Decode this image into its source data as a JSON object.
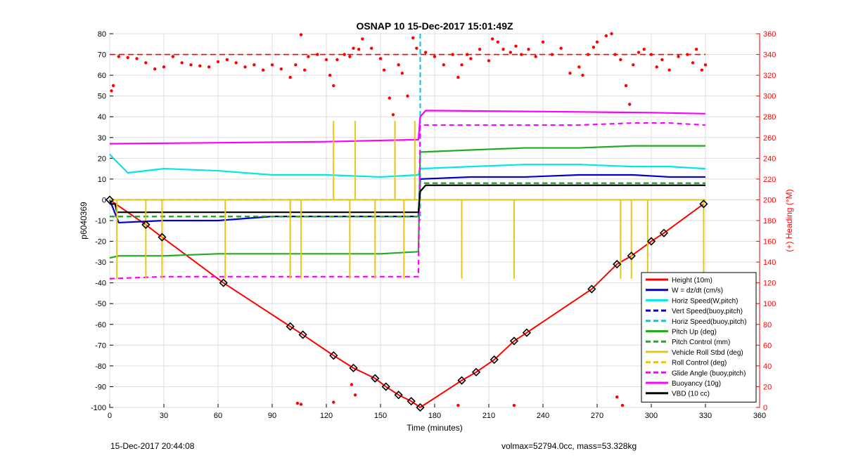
{
  "chart_data": {
    "type": "line",
    "title": "OSNAP 10 15-Dec-2017 15:01:49Z",
    "xlabel": "Time (minutes)",
    "ylabel": "p6040369",
    "y2label": "(+) Heading (°M)",
    "xlim": [
      0,
      360
    ],
    "ylim": [
      -100,
      80
    ],
    "y2lim": [
      0,
      360
    ],
    "xticks": [
      "0",
      "30",
      "60",
      "90",
      "120",
      "150",
      "180",
      "210",
      "240",
      "270",
      "300",
      "330",
      "360"
    ],
    "yticks": [
      "80",
      "70",
      "60",
      "50",
      "40",
      "30",
      "20",
      "10",
      "0",
      "-10",
      "-20",
      "-30",
      "-40",
      "-50",
      "-60",
      "-70",
      "-80",
      "-90",
      "-100"
    ],
    "y2ticks": [
      "360",
      "340",
      "320",
      "300",
      "280",
      "260",
      "240",
      "220",
      "200",
      "180",
      "160",
      "140",
      "120",
      "100",
      "80",
      "60",
      "40",
      "20",
      "0"
    ],
    "grid": true,
    "legend_position": "bottom-right",
    "series": [
      {
        "name": "Height (10m)",
        "color": "#ff0000",
        "style": "solid",
        "x": [
          0,
          20,
          29,
          63,
          100,
          107,
          124,
          135,
          147,
          153,
          160,
          167,
          172,
          195,
          203,
          213,
          224,
          231,
          267,
          281,
          289,
          300,
          307,
          329
        ],
        "y": [
          0,
          -12,
          -18,
          -40,
          -61,
          -65,
          -75,
          -81,
          -86,
          -90,
          -94,
          -97,
          -100,
          -87,
          -83,
          -77,
          -68,
          -64,
          -43,
          -31,
          -27,
          -20,
          -16,
          -2
        ]
      },
      {
        "name": "W = dz/dt (cm/s)",
        "color": "#0000cc",
        "style": "solid",
        "x": [
          0,
          5,
          30,
          60,
          90,
          120,
          150,
          171,
          172,
          200,
          230,
          260,
          290,
          310,
          330
        ],
        "y": [
          0,
          -11,
          -10,
          -10,
          -8,
          -8,
          -8,
          -8,
          10,
          11,
          11,
          12,
          12,
          11,
          11
        ]
      },
      {
        "name": "Horiz Speed(W,pitch)",
        "color": "#00e5ee",
        "style": "solid",
        "x": [
          0,
          2,
          10,
          30,
          60,
          90,
          120,
          150,
          171,
          172,
          200,
          230,
          260,
          290,
          310,
          330
        ],
        "y": [
          22,
          20,
          13,
          15,
          14,
          12,
          12,
          11,
          12,
          15,
          16,
          17,
          17,
          16,
          16,
          15
        ]
      },
      {
        "name": "Vert Speed(buoy,pitch)",
        "color": "#0000cc",
        "style": "dashed",
        "x": [
          0,
          171,
          172,
          330
        ],
        "y": [
          -8,
          -8,
          8,
          8
        ]
      },
      {
        "name": "Horiz Speed(buoy,pitch)",
        "color": "#00c8d8",
        "style": "dashed",
        "x": [
          0,
          171,
          172,
          330
        ],
        "y": [
          0,
          0,
          8,
          8
        ]
      },
      {
        "name": "Pitch Up (deg)",
        "color": "#22aa22",
        "style": "solid",
        "x": [
          0,
          5,
          30,
          60,
          90,
          120,
          150,
          171,
          172,
          200,
          230,
          260,
          290,
          310,
          330
        ],
        "y": [
          -28,
          -27,
          -27,
          -26,
          -26,
          -26,
          -26,
          -25,
          23,
          24,
          25,
          25,
          26,
          26,
          26
        ]
      },
      {
        "name": "Pitch Control (mm)",
        "color": "#22aa22",
        "style": "dashed",
        "x": [
          0,
          171,
          172,
          330
        ],
        "y": [
          -8,
          -8,
          8,
          8
        ]
      },
      {
        "name": "Vehicle Roll Stbd (deg)",
        "color": "#e6c619",
        "style": "solid",
        "x": [
          0,
          30,
          60,
          90,
          120,
          150,
          171,
          172,
          200,
          230,
          260,
          290,
          310,
          330
        ],
        "y": [
          0,
          0,
          0,
          0,
          0,
          0,
          0,
          0,
          0,
          0,
          0,
          0,
          0,
          0
        ]
      },
      {
        "name": "Roll Control (deg)",
        "color": "#e6c619",
        "style": "dashed",
        "x": [
          0,
          30,
          60,
          90,
          120,
          150,
          171,
          172,
          200,
          230,
          260,
          290,
          310,
          330
        ],
        "y": [
          0,
          0,
          0,
          0,
          0,
          0,
          0,
          0,
          0,
          0,
          0,
          0,
          0,
          0
        ]
      },
      {
        "name": "Glide Angle (buoy,pitch)",
        "color": "#ff00ff",
        "style": "dashed",
        "x": [
          0,
          30,
          60,
          90,
          120,
          150,
          171,
          172,
          200,
          230,
          260,
          290,
          310,
          330
        ],
        "y": [
          -38,
          -37,
          -37,
          -37,
          -37,
          -37,
          -37,
          36,
          36,
          36,
          36,
          37,
          37,
          36
        ]
      },
      {
        "name": "Buoyancy (10g)",
        "color": "#ff00ff",
        "style": "solid",
        "x": [
          0,
          60,
          120,
          171,
          172,
          175,
          240,
          300,
          330
        ],
        "y": [
          27,
          27.5,
          28,
          29,
          40,
          43,
          42.5,
          42,
          41.5
        ]
      },
      {
        "name": "VBD (10 cc)",
        "color": "#000000",
        "style": "solid",
        "x": [
          0,
          3,
          4,
          171,
          172,
          175,
          330
        ],
        "y": [
          -2,
          -2,
          -6,
          -6,
          4,
          7,
          7
        ]
      }
    ],
    "heading_reference_y2": 340,
    "dive_end_marker_x": 172,
    "heading_samples_y2": [
      [
        1,
        305
      ],
      [
        2,
        310
      ],
      [
        5,
        338
      ],
      [
        10,
        337
      ],
      [
        15,
        336
      ],
      [
        20,
        332
      ],
      [
        25,
        326
      ],
      [
        30,
        328
      ],
      [
        35,
        338
      ],
      [
        40,
        332
      ],
      [
        45,
        330
      ],
      [
        50,
        329
      ],
      [
        55,
        328
      ],
      [
        60,
        333
      ],
      [
        65,
        335
      ],
      [
        70,
        332
      ],
      [
        75,
        328
      ],
      [
        80,
        330
      ],
      [
        85,
        325
      ],
      [
        90,
        330
      ],
      [
        95,
        326
      ],
      [
        100,
        318
      ],
      [
        103,
        330
      ],
      [
        106,
        359
      ],
      [
        108,
        325
      ],
      [
        110,
        338
      ],
      [
        115,
        340
      ],
      [
        120,
        335
      ],
      [
        122,
        320
      ],
      [
        124,
        310
      ],
      [
        126,
        335
      ],
      [
        130,
        340
      ],
      [
        133,
        338
      ],
      [
        135,
        346
      ],
      [
        138,
        345
      ],
      [
        140,
        355
      ],
      [
        145,
        346
      ],
      [
        150,
        336
      ],
      [
        152,
        325
      ],
      [
        155,
        298
      ],
      [
        157,
        282
      ],
      [
        160,
        330
      ],
      [
        162,
        322
      ],
      [
        165,
        300
      ],
      [
        168,
        356
      ],
      [
        170,
        346
      ],
      [
        175,
        342
      ],
      [
        180,
        338
      ],
      [
        185,
        330
      ],
      [
        190,
        340
      ],
      [
        193,
        318
      ],
      [
        195,
        330
      ],
      [
        198,
        340
      ],
      [
        200,
        336
      ],
      [
        205,
        345
      ],
      [
        210,
        334
      ],
      [
        212,
        355
      ],
      [
        215,
        352
      ],
      [
        218,
        345
      ],
      [
        222,
        342
      ],
      [
        225,
        348
      ],
      [
        228,
        340
      ],
      [
        232,
        345
      ],
      [
        236,
        338
      ],
      [
        240,
        352
      ],
      [
        245,
        340
      ],
      [
        250,
        346
      ],
      [
        255,
        322
      ],
      [
        260,
        328
      ],
      [
        262,
        320
      ],
      [
        265,
        340
      ],
      [
        268,
        347
      ],
      [
        270,
        352
      ],
      [
        275,
        358
      ],
      [
        278,
        360
      ],
      [
        280,
        340
      ],
      [
        283,
        335
      ],
      [
        286,
        310
      ],
      [
        288,
        292
      ],
      [
        290,
        330
      ],
      [
        293,
        342
      ],
      [
        296,
        345
      ],
      [
        300,
        340
      ],
      [
        303,
        328
      ],
      [
        306,
        335
      ],
      [
        310,
        325
      ],
      [
        315,
        338
      ],
      [
        320,
        340
      ],
      [
        323,
        332
      ],
      [
        325,
        345
      ],
      [
        328,
        325
      ],
      [
        330,
        330
      ]
    ],
    "heading_low_samples_y2": [
      [
        104,
        4
      ],
      [
        106,
        3
      ],
      [
        124,
        5
      ],
      [
        134,
        22
      ],
      [
        136,
        12
      ],
      [
        193,
        2
      ],
      [
        224,
        2
      ],
      [
        281,
        10
      ],
      [
        284,
        2
      ]
    ]
  },
  "footer": {
    "left": "15-Dec-2017 20:44:08",
    "right": "volmax=52794.0cc, mass=53.328kg"
  }
}
